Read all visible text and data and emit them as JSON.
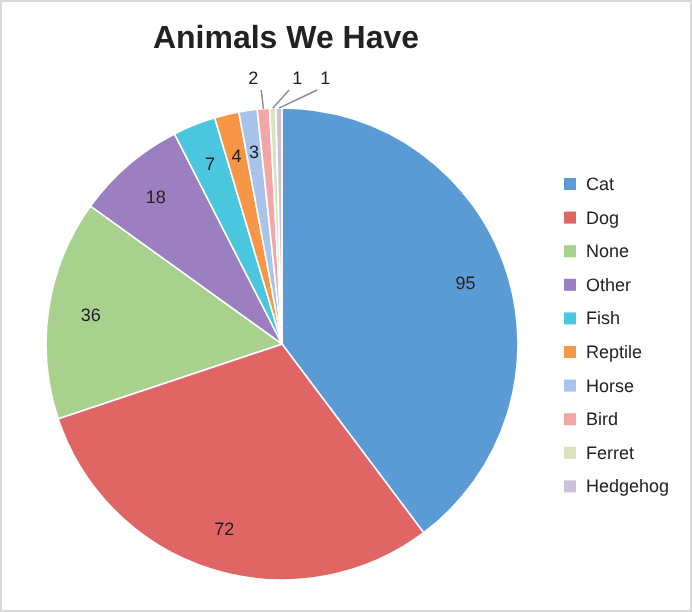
{
  "chart_data": {
    "type": "pie",
    "title": "Animals We Have",
    "categories": [
      "Cat",
      "Dog",
      "None",
      "Other",
      "Fish",
      "Reptile",
      "Horse",
      "Bird",
      "Ferret",
      "Hedgehog"
    ],
    "values": [
      95,
      72,
      36,
      18,
      7,
      4,
      3,
      2,
      1,
      1
    ],
    "colors": [
      "#5b9bd5",
      "#e06666",
      "#a9d18e",
      "#9c7fc0",
      "#4bc6df",
      "#f79646",
      "#a9c4eb",
      "#f4a6a6",
      "#d7e4bd",
      "#ccc0da"
    ],
    "data_labels": true,
    "legend": "right"
  }
}
